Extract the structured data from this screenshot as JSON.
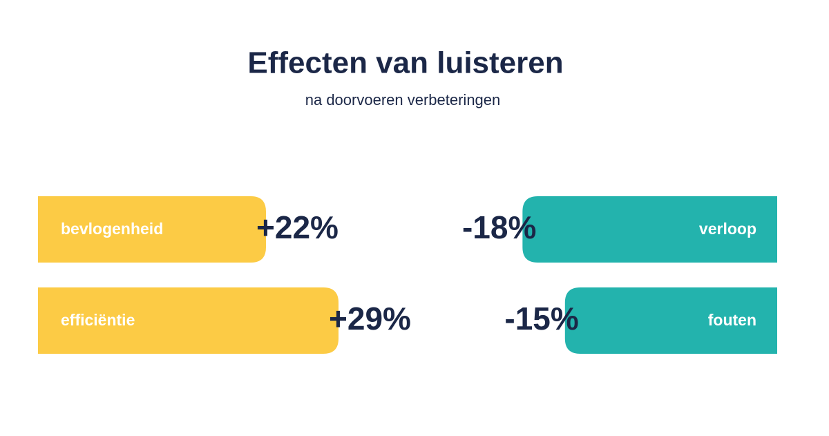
{
  "title": "Effecten van luisteren",
  "subtitle": "na doorvoeren verbeteringen",
  "chart_data": [
    {
      "type": "bar",
      "orientation": "horizontal",
      "color": "#fccb45",
      "categories": [
        "bevlogenheid",
        "efficiëntie"
      ],
      "values": [
        22,
        29
      ],
      "value_labels": [
        "+22%",
        "+29%"
      ],
      "xlim": [
        0,
        30
      ]
    },
    {
      "type": "bar",
      "orientation": "horizontal",
      "color": "#23b3ad",
      "categories": [
        "verloop",
        "fouten"
      ],
      "values": [
        -18,
        -15
      ],
      "value_labels": [
        "-18%",
        "-15%"
      ],
      "xlim": [
        -25,
        0
      ]
    }
  ]
}
